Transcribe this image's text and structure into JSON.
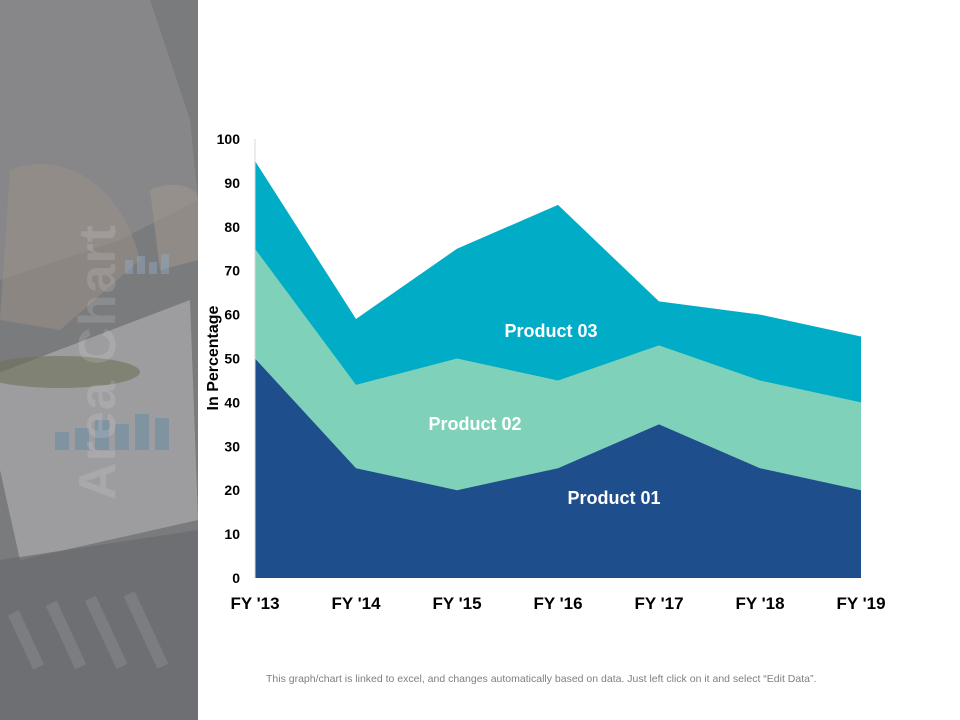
{
  "side_title": "Area Chart",
  "footnote": "This graph/chart is linked to excel,  and changes automatically based on data. Just left click on it and select “Edit Data”.",
  "colors": {
    "product01": "#1f4e8c",
    "product02": "#7fd1b9",
    "product03": "#00acc6",
    "axis_text": "#000000",
    "axis_line": "#d9d9d9"
  },
  "chart_data": {
    "type": "area",
    "stacked": false,
    "categories": [
      "FY '13",
      "FY '14",
      "FY '15",
      "FY '16",
      "FY '17",
      "FY '18",
      "FY '19"
    ],
    "series": [
      {
        "name": "Product 03",
        "values": [
          95,
          59,
          75,
          85,
          63,
          60,
          55
        ]
      },
      {
        "name": "Product 02",
        "values": [
          75,
          44,
          50,
          45,
          53,
          45,
          40
        ]
      },
      {
        "name": "Product 01",
        "values": [
          50,
          25,
          20,
          25,
          35,
          25,
          20
        ]
      }
    ],
    "ylabel": "In Percentage",
    "ylim": [
      0,
      100
    ],
    "yticks": [
      "0",
      "10",
      "20",
      "30",
      "40",
      "50",
      "60",
      "70",
      "80",
      "90",
      "100"
    ],
    "grid": false
  }
}
